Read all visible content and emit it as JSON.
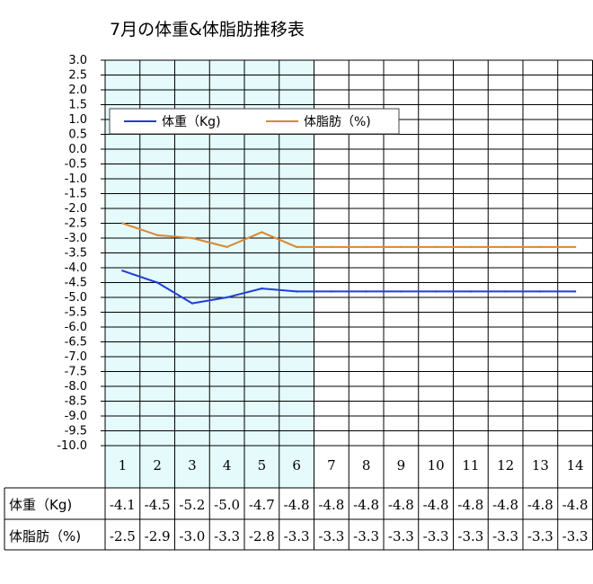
{
  "chart_data": {
    "type": "line",
    "title": "7月の体重&体脂肪推移表",
    "categories": [
      "1",
      "2",
      "3",
      "4",
      "5",
      "6",
      "7",
      "8",
      "9",
      "10",
      "11",
      "12",
      "13",
      "14"
    ],
    "ylim": [
      -10.0,
      3.0
    ],
    "ystep": 0.5,
    "grid": true,
    "highlight_range": [
      "1",
      "6"
    ],
    "legend_position": "top-left",
    "series": [
      {
        "name": "体重（Kg)",
        "color": "#1f3fd6",
        "values": [
          -4.1,
          -4.5,
          -5.2,
          -5.0,
          -4.7,
          -4.8,
          -4.8,
          -4.8,
          -4.8,
          -4.8,
          -4.8,
          -4.8,
          -4.8,
          -4.8
        ],
        "labels": [
          "-4.1",
          "-4.5",
          "-5.2",
          "-5.0",
          "-4.7",
          "-4.8",
          "-4.8",
          "-4.8",
          "-4.8",
          "-4.8",
          "-4.8",
          "-4.8",
          "-4.8",
          "-4.8"
        ]
      },
      {
        "name": "体脂肪（%)",
        "color": "#d98732",
        "values": [
          -2.5,
          -2.9,
          -3.0,
          -3.3,
          -2.8,
          -3.3,
          -3.3,
          -3.3,
          -3.3,
          -3.3,
          -3.3,
          -3.3,
          -3.3,
          -3.3
        ],
        "labels": [
          "-2.5",
          "-2.9",
          "-3.0",
          "-3.3",
          "-2.8",
          "-3.3",
          "-3.3",
          "-3.3",
          "-3.3",
          "-3.3",
          "-3.3",
          "-3.3",
          "-3.3",
          "-3.3"
        ]
      }
    ],
    "colors": {
      "highlight": "#e4fafb",
      "grid": "#000000"
    }
  }
}
